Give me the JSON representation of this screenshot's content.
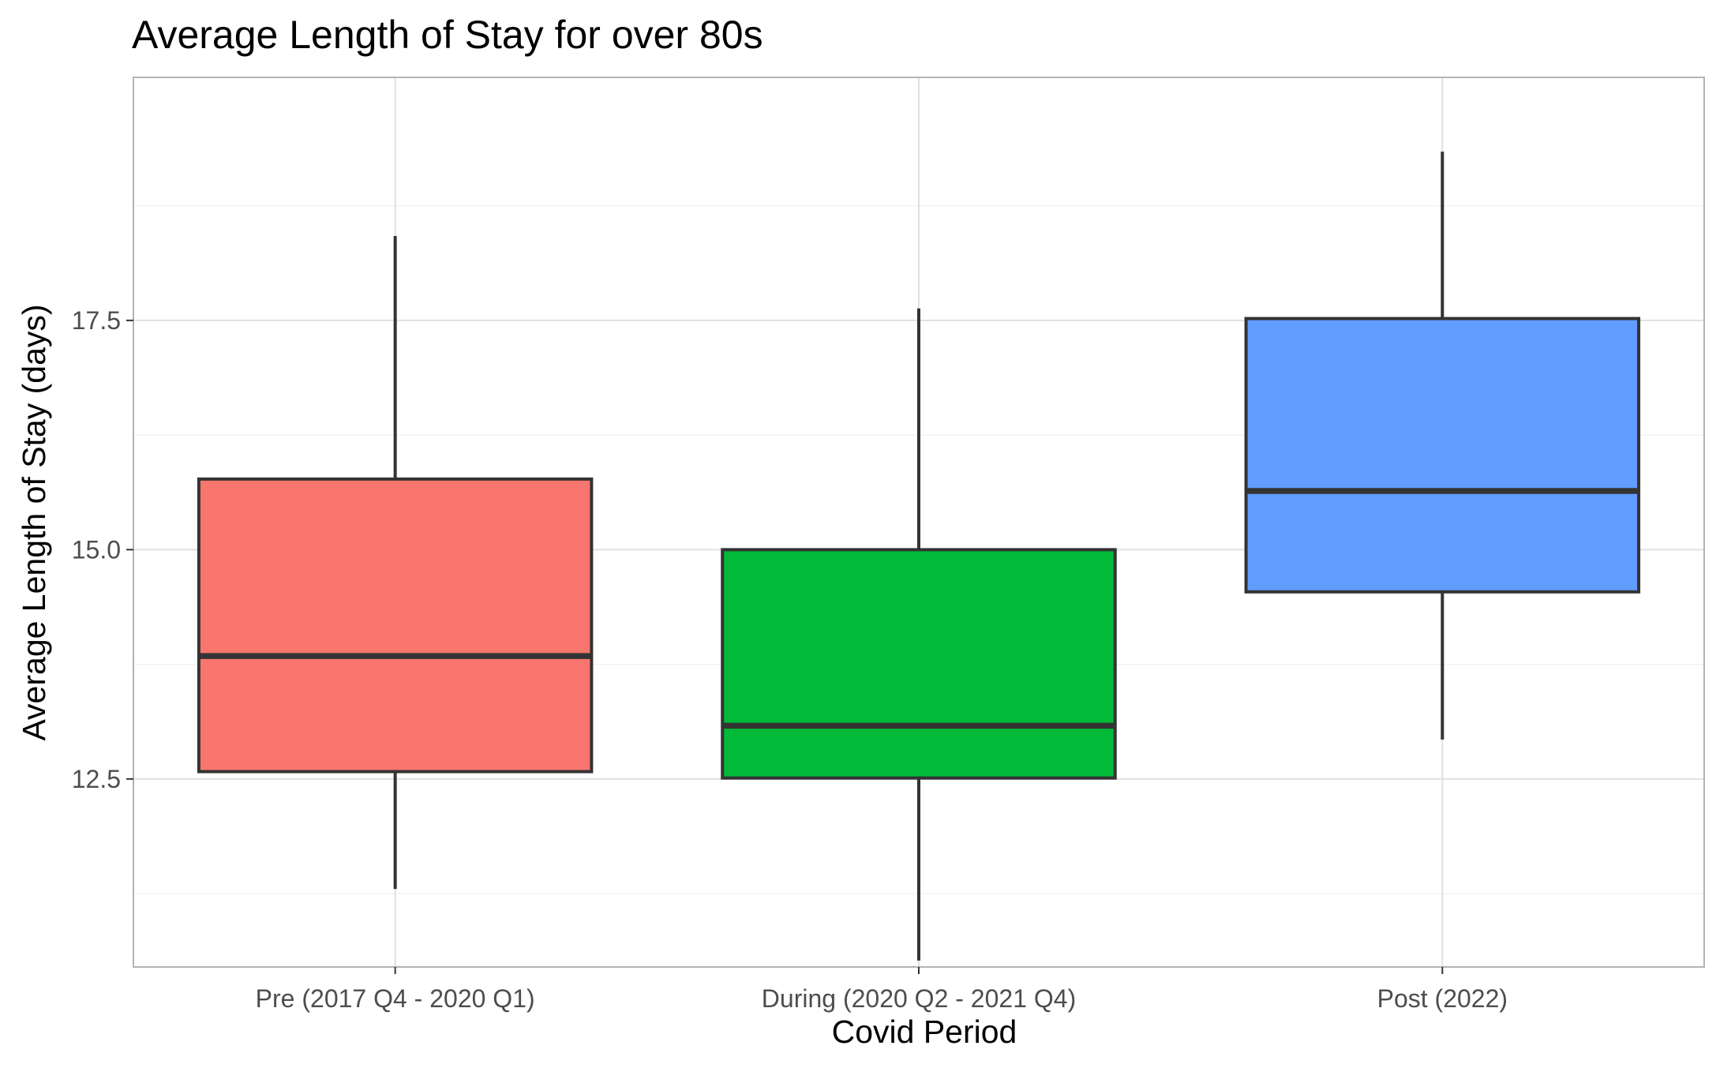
{
  "chart_data": {
    "type": "box",
    "title": "Average Length of Stay for over 80s",
    "xlabel": "Covid Period",
    "ylabel": "Average Length of Stay (days)",
    "ylim": [
      10.45,
      20.15
    ],
    "yticks": [
      12.5,
      15.0,
      17.5
    ],
    "ytick_labels": [
      "12.5",
      "15.0",
      "17.5"
    ],
    "grid": true,
    "legend": "none",
    "categories": [
      "Pre (2017 Q4 - 2020 Q1)",
      "During (2020 Q2 - 2021 Q4)",
      "Post (2022)"
    ],
    "boxes": [
      {
        "category": "Pre (2017 Q4 - 2020 Q1)",
        "min": 11.3,
        "q1": 12.58,
        "median": 13.84,
        "q3": 15.77,
        "max": 18.42,
        "color": "#F8766D"
      },
      {
        "category": "During (2020 Q2 - 2021 Q4)",
        "min": 10.52,
        "q1": 12.51,
        "median": 13.08,
        "q3": 15.0,
        "max": 17.63,
        "color": "#00BA38"
      },
      {
        "category": "Post (2022)",
        "min": 12.93,
        "q1": 14.54,
        "median": 15.64,
        "q3": 17.52,
        "max": 19.34,
        "color": "#619CFF"
      }
    ]
  }
}
